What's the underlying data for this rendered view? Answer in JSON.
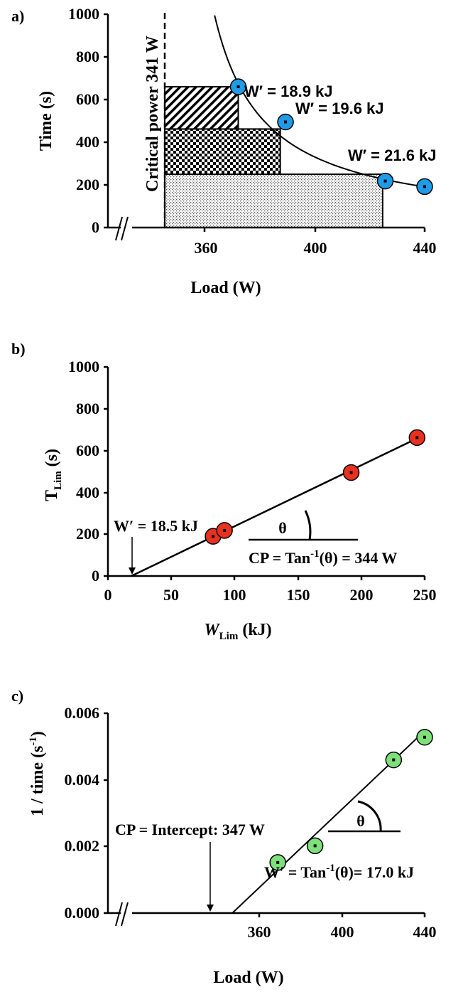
{
  "chart_data": [
    {
      "panel": "a)",
      "type": "scatter",
      "xlabel": "Load (W)",
      "ylabel": "Time (s)",
      "xlim": [
        341,
        440
      ],
      "ylim": [
        0,
        1000
      ],
      "x_ticks": [
        "360",
        "400",
        "440"
      ],
      "y_ticks": [
        "0",
        "200",
        "400",
        "600",
        "800",
        "1000"
      ],
      "critical_power_label": "Critical power 341 W",
      "critical_power": 341,
      "points": [
        {
          "x": 369,
          "y": 660
        },
        {
          "x": 387,
          "y": 495
        },
        {
          "x": 425,
          "y": 218
        },
        {
          "x": 440,
          "y": 192
        }
      ],
      "rectangles": [
        {
          "x0": 341,
          "x1": 369,
          "y": 660,
          "pattern": "diagonal"
        },
        {
          "x0": 341,
          "x1": 385,
          "y": 462,
          "pattern": "checker"
        },
        {
          "x0": 341,
          "x1": 424,
          "y": 250,
          "pattern": "dots"
        }
      ],
      "annotations": [
        "W′ = 18.9 kJ",
        "W′ = 19.6 kJ",
        "W′ = 21.6 kJ"
      ],
      "marker_color": "#1f9be8"
    },
    {
      "panel": "b)",
      "type": "scatter",
      "xlabel": "W",
      "xlabel_sub": "Lim",
      "xlabel_unit": " (kJ)",
      "ylabel": "T",
      "ylabel_sub": "Lim",
      "ylabel_unit": " (s)",
      "xlim": [
        0,
        250
      ],
      "ylim": [
        0,
        1000
      ],
      "x_ticks": [
        "0",
        "50",
        "100",
        "150",
        "200",
        "250"
      ],
      "y_ticks": [
        "0",
        "200",
        "400",
        "600",
        "800",
        "1000"
      ],
      "points": [
        {
          "x": 83,
          "y": 190
        },
        {
          "x": 92,
          "y": 218
        },
        {
          "x": 192,
          "y": 495
        },
        {
          "x": 244,
          "y": 662
        }
      ],
      "fit_line": {
        "x0": 18.5,
        "y0": 0,
        "x1": 245,
        "y1": 661
      },
      "annotation_w": "W′  = 18.5 kJ",
      "annotation_cp": "CP = Tan",
      "annotation_cp_sup": "-1",
      "annotation_cp_tail": "(θ) = 344 W",
      "theta": "θ",
      "marker_color": "#e8311f"
    },
    {
      "panel": "c)",
      "type": "scatter",
      "xlabel": "Load (W)",
      "ylabel": "1 / time (s",
      "ylabel_sup": "-1",
      "ylabel_tail": ")",
      "xlim": [
        335,
        440
      ],
      "ylim": [
        0,
        0.006
      ],
      "x_ticks": [
        "360",
        "400",
        "440"
      ],
      "y_ticks": [
        "0.000",
        "0.002",
        "0.004",
        "0.006"
      ],
      "points": [
        {
          "x": 369,
          "y": 0.00152
        },
        {
          "x": 387,
          "y": 0.00202
        },
        {
          "x": 425,
          "y": 0.0046
        },
        {
          "x": 440,
          "y": 0.00528
        }
      ],
      "fit_line": {
        "x0": 347,
        "y0": 0,
        "x1": 440,
        "y1": 0.00547
      },
      "annotation_cp": "CP = Intercept: 347 W",
      "annotation_w": "W′ = Tan",
      "annotation_w_sup": "-1",
      "annotation_w_tail": "(θ)= 17.0 kJ",
      "theta": "θ",
      "marker_color": "#7ee07a"
    }
  ]
}
